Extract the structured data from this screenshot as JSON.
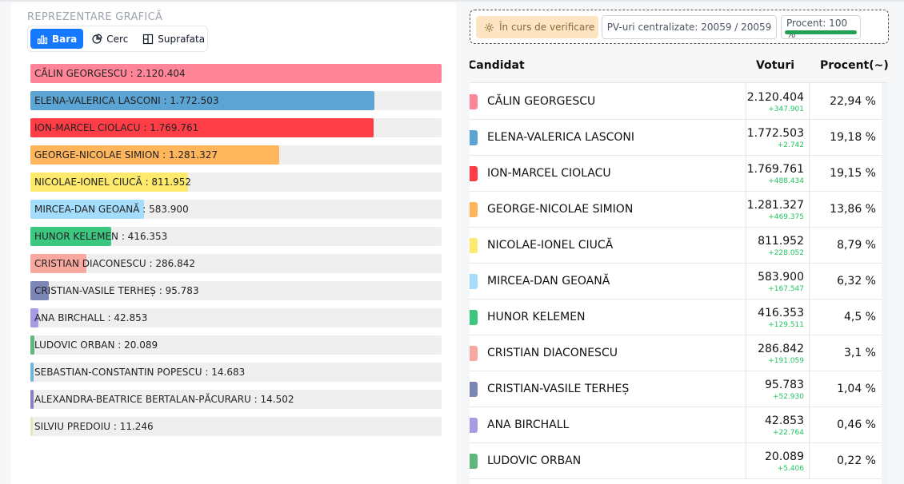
{
  "chart_section": {
    "title": "REPREZENTARE GRAFICĂ",
    "tabs": [
      {
        "label": "Bara",
        "icon": "bar-chart-icon",
        "active": true
      },
      {
        "label": "Cerc",
        "icon": "pie-chart-icon",
        "active": false
      },
      {
        "label": "Suprafata",
        "icon": "treemap-icon",
        "active": false
      }
    ]
  },
  "chart_data": {
    "type": "bar",
    "orientation": "horizontal",
    "categories": [
      "CĂLIN GEORGESCU",
      "ELENA-VALERICA LASCONI",
      "ION-MARCEL CIOLACU",
      "GEORGE-NICOLAE SIMION",
      "NICOLAE-IONEL CIUCĂ",
      "MIRCEA-DAN GEOANĂ",
      "HUNOR KELEMEN",
      "CRISTIAN DIACONESCU",
      "CRISTIAN-VASILE TERHEȘ",
      "ANA BIRCHALL",
      "LUDOVIC ORBAN",
      "SEBASTIAN-CONSTANTIN POPESCU",
      "ALEXANDRA-BEATRICE BERTALAN-PĂCURARU",
      "SILVIU PREDOIU"
    ],
    "values": [
      2120404,
      1772503,
      1769761,
      1281327,
      811952,
      583900,
      416353,
      286842,
      95783,
      42853,
      20089,
      14683,
      14502,
      11246
    ],
    "labels": [
      "CĂLIN GEORGESCU : 2.120.404",
      "ELENA-VALERICA LASCONI : 1.772.503",
      "ION-MARCEL CIOLACU : 1.769.761",
      "GEORGE-NICOLAE SIMION : 1.281.327",
      "NICOLAE-IONEL CIUCĂ : 811.952",
      "MIRCEA-DAN GEOANĂ : 583.900",
      "HUNOR KELEMEN : 416.353",
      "CRISTIAN DIACONESCU : 286.842",
      "CRISTIAN-VASILE TERHEȘ : 95.783",
      "ANA BIRCHALL : 42.853",
      "LUDOVIC ORBAN : 20.089",
      "SEBASTIAN-CONSTANTIN POPESCU : 14.683",
      "ALEXANDRA-BEATRICE BERTALAN-PĂCURARU : 14.502",
      "SILVIU PREDOIU : 11.246"
    ],
    "colors": [
      "#ff8599",
      "#5ba4d3",
      "#ff3d47",
      "#ffb55c",
      "#fde96b",
      "#a4ddfb",
      "#3bc780",
      "#f9a8a0",
      "#7c86b5",
      "#a89be3",
      "#5fb77e",
      "#6fb7d8",
      "#8b7fc4",
      "#dfe8b7"
    ],
    "xlim": [
      0,
      2120404
    ],
    "grid": false,
    "legend": "none"
  },
  "status": {
    "verification_label": "În curs de verificare",
    "verification_icon": "gear-icon",
    "pv_label": "PV-uri centralizate: 20059 / 20059",
    "percent_label": "Procent: 100 %",
    "percent_value": 1.0
  },
  "table": {
    "headers": {
      "candidate": "Candidat",
      "votes": "Voturi",
      "percent": "Procent(~)"
    },
    "rows": [
      {
        "name": "CĂLIN GEORGESCU",
        "votes": "2.120.404",
        "delta": "+347.901",
        "percent": "22,94 %",
        "color": "#ff8599"
      },
      {
        "name": "ELENA-VALERICA LASCONI",
        "votes": "1.772.503",
        "delta": "+2.742",
        "percent": "19,18 %",
        "color": "#5ba4d3"
      },
      {
        "name": "ION-MARCEL CIOLACU",
        "votes": "1.769.761",
        "delta": "+488.434",
        "percent": "19,15 %",
        "color": "#ff3d47"
      },
      {
        "name": "GEORGE-NICOLAE SIMION",
        "votes": "1.281.327",
        "delta": "+469.375",
        "percent": "13,86 %",
        "color": "#ffb55c"
      },
      {
        "name": "NICOLAE-IONEL CIUCĂ",
        "votes": "811.952",
        "delta": "+228.052",
        "percent": "8,79 %",
        "color": "#fde96b"
      },
      {
        "name": "MIRCEA-DAN GEOANĂ",
        "votes": "583.900",
        "delta": "+167.547",
        "percent": "6,32 %",
        "color": "#a4ddfb"
      },
      {
        "name": "HUNOR KELEMEN",
        "votes": "416.353",
        "delta": "+129.511",
        "percent": "4,5 %",
        "color": "#3bc780"
      },
      {
        "name": "CRISTIAN DIACONESCU",
        "votes": "286.842",
        "delta": "+191.059",
        "percent": "3,1 %",
        "color": "#f9a8a0"
      },
      {
        "name": "CRISTIAN-VASILE TERHEȘ",
        "votes": "95.783",
        "delta": "+52.930",
        "percent": "1,04 %",
        "color": "#7c86b5"
      },
      {
        "name": "ANA BIRCHALL",
        "votes": "42.853",
        "delta": "+22.764",
        "percent": "0,46 %",
        "color": "#a89be3"
      },
      {
        "name": "LUDOVIC ORBAN",
        "votes": "20.089",
        "delta": "+5.406",
        "percent": "0,22 %",
        "color": "#5fb77e"
      }
    ]
  }
}
